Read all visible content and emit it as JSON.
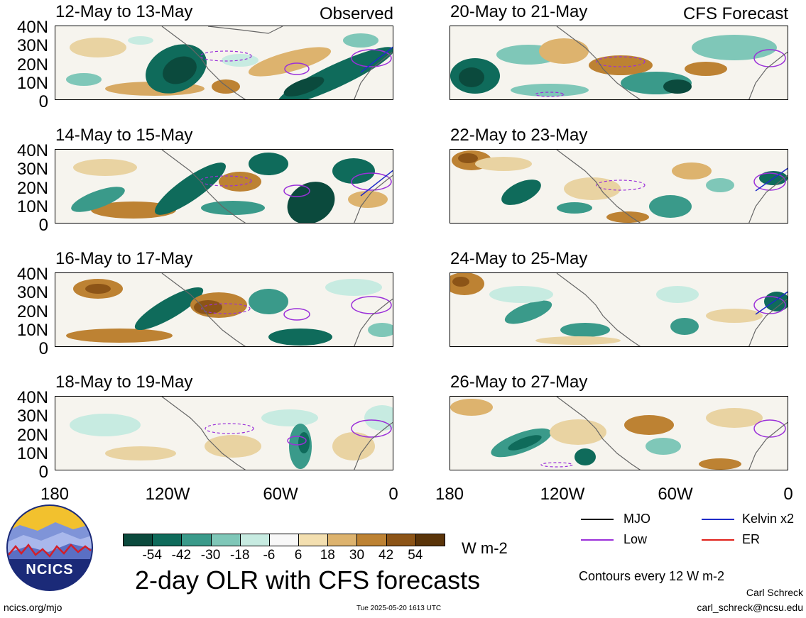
{
  "corner_labels": {
    "left": "Observed",
    "right": "CFS Forecast"
  },
  "panels": [
    {
      "title": "12-May to 13-May"
    },
    {
      "title": "14-May to 15-May"
    },
    {
      "title": "16-May to 17-May"
    },
    {
      "title": "18-May to 19-May"
    },
    {
      "title": "20-May to 21-May"
    },
    {
      "title": "22-May to 23-May"
    },
    {
      "title": "24-May to 25-May"
    },
    {
      "title": "26-May to 27-May"
    }
  ],
  "lat_labels": [
    "40N",
    "30N",
    "20N",
    "10N",
    "0"
  ],
  "lon_labels": [
    "180",
    "120W",
    "60W",
    "0"
  ],
  "colorbar": {
    "ticks": [
      "-54",
      "-42",
      "-30",
      "-18",
      "-6",
      "6",
      "18",
      "30",
      "42",
      "54"
    ],
    "colors": [
      "#0b4a3d",
      "#0f6b5b",
      "#3a9a8a",
      "#7fc7b8",
      "#c7ebe1",
      "#f8f8f8",
      "#f3dfb0",
      "#ddb36e",
      "#bd8233",
      "#8c5417",
      "#5a3409"
    ],
    "units": "W m-2"
  },
  "legend": {
    "items": [
      {
        "label": "MJO",
        "color": "#000000"
      },
      {
        "label": "Kelvin x2",
        "color": "#1f2bc8"
      },
      {
        "label": "Low",
        "color": "#9b30d9"
      },
      {
        "label": "ER",
        "color": "#e0201a"
      }
    ],
    "contours_note": "Contours every 12 W m-2"
  },
  "main_title": "2-day OLR with CFS forecasts",
  "logo_text": "NCICS",
  "footer": {
    "url": "ncics.org/mjo",
    "timestamp": "Tue 2025-05-20 1613 UTC",
    "author": "Carl Schreck",
    "email": "carl_schreck@ncsu.edu"
  }
}
